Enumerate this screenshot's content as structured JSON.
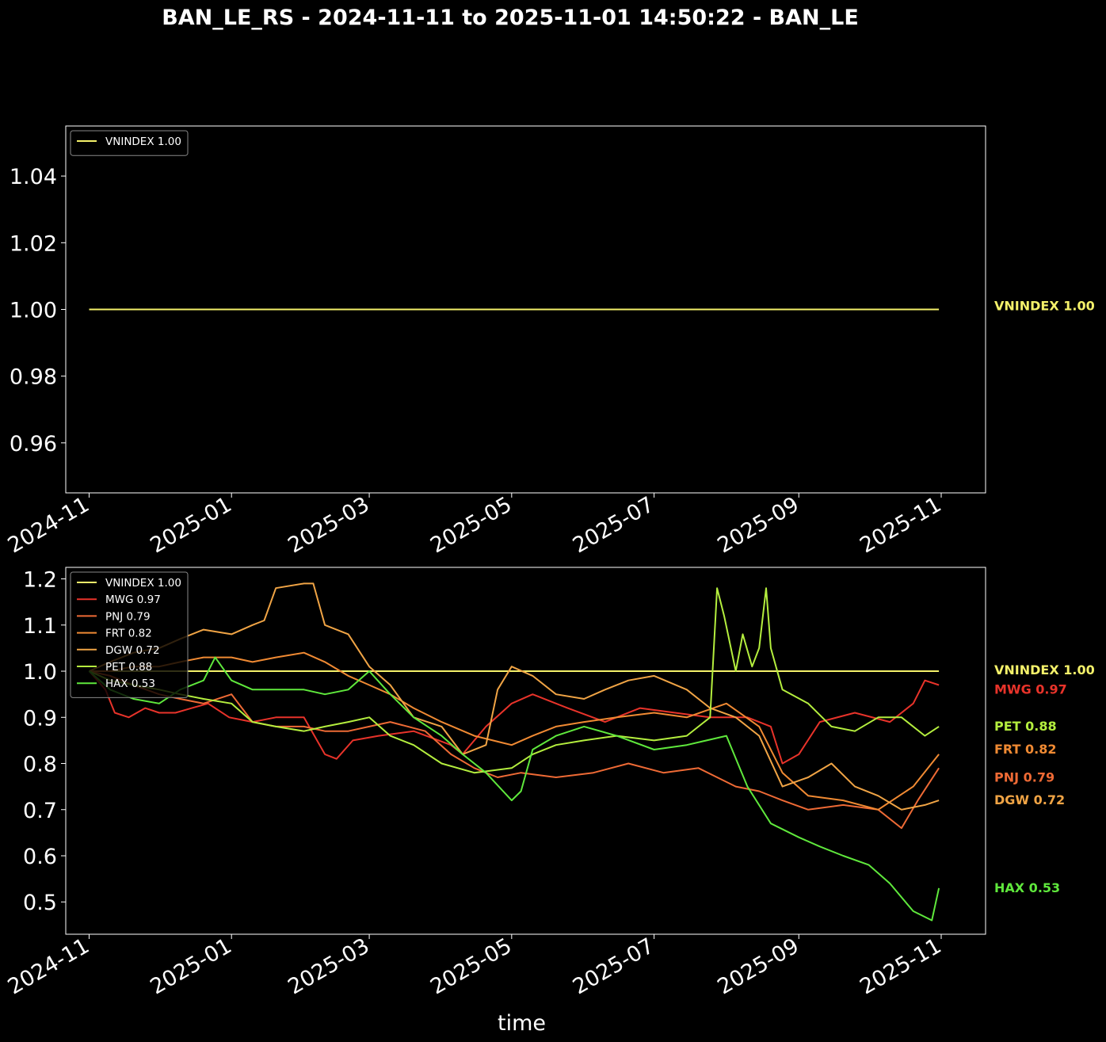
{
  "title": "BAN_LE_RS - 2024-11-11 to 2025-11-01 14:50:22 - BAN_LE",
  "colors": {
    "background": "#000000",
    "text": "#ffffff",
    "VNINDEX": "#f4f16a",
    "MWG": "#e8332a",
    "PNJ": "#ee6a35",
    "FRT": "#f08a33",
    "DGW": "#f0a445",
    "PET": "#b4ee3e",
    "HAX": "#5fe83c"
  },
  "chart_data": [
    {
      "type": "line",
      "title": "",
      "xlabel": "",
      "ylabel": "",
      "x_range": [
        "2024-11-11",
        "2025-11-01"
      ],
      "xlim": [
        "2024-10-22",
        "2025-11-20"
      ],
      "ylim": [
        0.945,
        1.055
      ],
      "yticks": [
        0.96,
        0.98,
        1.0,
        1.02,
        1.04
      ],
      "ytick_labels": [
        "0.96",
        "0.98",
        "1.00",
        "1.02",
        "1.04"
      ],
      "xticks": [
        "2024-11-01",
        "2025-01-01",
        "2025-03-01",
        "2025-05-01",
        "2025-07-01",
        "2025-09-01",
        "2025-11-01"
      ],
      "xtick_labels": [
        "2024-11",
        "2025-01",
        "2025-03",
        "2025-05",
        "2025-07",
        "2025-09",
        "2025-11"
      ],
      "grid": false,
      "legend_position": "top-left",
      "legend": [
        "VNINDEX 1.00"
      ],
      "series": [
        {
          "name": "VNINDEX 1.00",
          "key": "VNINDEX",
          "end_label": "VNINDEX 1.00",
          "x": [
            "2024-11-01",
            "2025-10-31"
          ],
          "values": [
            1.0,
            1.0
          ]
        }
      ]
    },
    {
      "type": "line",
      "title": "",
      "xlabel": "time",
      "ylabel": "",
      "x_range": [
        "2024-11-11",
        "2025-11-01"
      ],
      "xlim": [
        "2024-10-22",
        "2025-11-20"
      ],
      "ylim": [
        0.43,
        1.225
      ],
      "yticks": [
        0.5,
        0.6,
        0.7,
        0.8,
        0.9,
        1.0,
        1.1,
        1.2
      ],
      "ytick_labels": [
        "0.5",
        "0.6",
        "0.7",
        "0.8",
        "0.9",
        "1.0",
        "1.1",
        "1.2"
      ],
      "xticks": [
        "2024-11-01",
        "2025-01-01",
        "2025-03-01",
        "2025-05-01",
        "2025-07-01",
        "2025-09-01",
        "2025-11-01"
      ],
      "xtick_labels": [
        "2024-11",
        "2025-01",
        "2025-03",
        "2025-05",
        "2025-07",
        "2025-09",
        "2025-11"
      ],
      "grid": false,
      "legend_position": "top-left",
      "legend": [
        "VNINDEX 1.00",
        "MWG 0.97",
        "PNJ 0.79",
        "FRT 0.82",
        "DGW 0.72",
        "PET 0.88",
        "HAX 0.53"
      ],
      "series": [
        {
          "name": "VNINDEX 1.00",
          "key": "VNINDEX",
          "end_label": "VNINDEX 1.00",
          "x": [
            "2024-11-01",
            "2025-10-31"
          ],
          "values": [
            1.0,
            1.0
          ]
        },
        {
          "name": "MWG 0.97",
          "key": "MWG",
          "end_label": "MWG 0.97",
          "x": [
            "2024-11-01",
            "2024-11-08",
            "2024-11-12",
            "2024-11-18",
            "2024-11-25",
            "2024-12-01",
            "2024-12-08",
            "2024-12-15",
            "2024-12-22",
            "2024-12-31",
            "2025-01-10",
            "2025-01-20",
            "2025-02-01",
            "2025-02-10",
            "2025-02-15",
            "2025-02-22",
            "2025-03-05",
            "2025-03-20",
            "2025-04-05",
            "2025-04-10",
            "2025-04-20",
            "2025-05-01",
            "2025-05-10",
            "2025-05-25",
            "2025-06-10",
            "2025-06-25",
            "2025-07-10",
            "2025-07-25",
            "2025-08-10",
            "2025-08-20",
            "2025-08-25",
            "2025-09-01",
            "2025-09-10",
            "2025-09-25",
            "2025-10-10",
            "2025-10-20",
            "2025-10-25",
            "2025-10-31"
          ],
          "values": [
            1.0,
            0.96,
            0.91,
            0.9,
            0.92,
            0.91,
            0.91,
            0.92,
            0.93,
            0.9,
            0.89,
            0.9,
            0.9,
            0.82,
            0.81,
            0.85,
            0.86,
            0.87,
            0.84,
            0.82,
            0.88,
            0.93,
            0.95,
            0.92,
            0.89,
            0.92,
            0.91,
            0.9,
            0.9,
            0.88,
            0.8,
            0.82,
            0.89,
            0.91,
            0.89,
            0.93,
            0.98,
            0.97
          ]
        },
        {
          "name": "PNJ 0.79",
          "key": "PNJ",
          "end_label": "PNJ 0.79",
          "x": [
            "2024-11-01",
            "2024-11-10",
            "2024-11-20",
            "2024-12-01",
            "2024-12-10",
            "2024-12-20",
            "2025-01-01",
            "2025-01-10",
            "2025-01-20",
            "2025-02-01",
            "2025-02-10",
            "2025-02-20",
            "2025-03-01",
            "2025-03-10",
            "2025-03-25",
            "2025-04-05",
            "2025-04-15",
            "2025-04-25",
            "2025-05-05",
            "2025-05-20",
            "2025-06-05",
            "2025-06-20",
            "2025-07-05",
            "2025-07-20",
            "2025-08-05",
            "2025-08-15",
            "2025-08-25",
            "2025-09-05",
            "2025-09-20",
            "2025-10-05",
            "2025-10-15",
            "2025-10-22",
            "2025-10-31"
          ],
          "values": [
            1.0,
            0.99,
            0.97,
            0.95,
            0.94,
            0.93,
            0.95,
            0.89,
            0.88,
            0.88,
            0.87,
            0.87,
            0.88,
            0.89,
            0.87,
            0.82,
            0.79,
            0.77,
            0.78,
            0.77,
            0.78,
            0.8,
            0.78,
            0.79,
            0.75,
            0.74,
            0.72,
            0.7,
            0.71,
            0.7,
            0.66,
            0.72,
            0.79
          ]
        },
        {
          "name": "FRT 0.82",
          "key": "FRT",
          "end_label": "FRT 0.82",
          "x": [
            "2024-11-01",
            "2024-11-10",
            "2024-11-20",
            "2024-12-01",
            "2024-12-10",
            "2024-12-20",
            "2025-01-01",
            "2025-01-10",
            "2025-01-20",
            "2025-02-01",
            "2025-02-10",
            "2025-02-20",
            "2025-03-01",
            "2025-03-10",
            "2025-03-20",
            "2025-04-01",
            "2025-04-15",
            "2025-05-01",
            "2025-05-10",
            "2025-05-20",
            "2025-06-01",
            "2025-06-15",
            "2025-07-01",
            "2025-07-15",
            "2025-08-01",
            "2025-08-15",
            "2025-08-25",
            "2025-09-05",
            "2025-09-20",
            "2025-10-05",
            "2025-10-20",
            "2025-10-31"
          ],
          "values": [
            1.0,
            1.0,
            1.01,
            1.01,
            1.02,
            1.03,
            1.03,
            1.02,
            1.03,
            1.04,
            1.02,
            0.99,
            0.97,
            0.95,
            0.92,
            0.89,
            0.86,
            0.84,
            0.86,
            0.88,
            0.89,
            0.9,
            0.91,
            0.9,
            0.93,
            0.88,
            0.78,
            0.73,
            0.72,
            0.7,
            0.75,
            0.82
          ]
        },
        {
          "name": "DGW 0.72",
          "key": "DGW",
          "end_label": "DGW 0.72",
          "x": [
            "2024-11-01",
            "2024-11-10",
            "2024-11-20",
            "2024-12-01",
            "2024-12-10",
            "2024-12-20",
            "2025-01-01",
            "2025-01-10",
            "2025-01-15",
            "2025-01-20",
            "2025-02-01",
            "2025-02-05",
            "2025-02-10",
            "2025-02-20",
            "2025-03-01",
            "2025-03-10",
            "2025-03-20",
            "2025-04-01",
            "2025-04-10",
            "2025-04-20",
            "2025-04-25",
            "2025-05-01",
            "2025-05-10",
            "2025-05-20",
            "2025-06-01",
            "2025-06-10",
            "2025-06-20",
            "2025-07-01",
            "2025-07-15",
            "2025-07-25",
            "2025-08-05",
            "2025-08-15",
            "2025-08-25",
            "2025-09-05",
            "2025-09-15",
            "2025-09-25",
            "2025-10-05",
            "2025-10-15",
            "2025-10-25",
            "2025-10-31"
          ],
          "values": [
            1.0,
            1.02,
            1.04,
            1.05,
            1.07,
            1.09,
            1.08,
            1.1,
            1.11,
            1.18,
            1.19,
            1.19,
            1.1,
            1.08,
            1.01,
            0.97,
            0.9,
            0.88,
            0.82,
            0.84,
            0.96,
            1.01,
            0.99,
            0.95,
            0.94,
            0.96,
            0.98,
            0.99,
            0.96,
            0.92,
            0.9,
            0.86,
            0.75,
            0.77,
            0.8,
            0.75,
            0.73,
            0.7,
            0.71,
            0.72
          ]
        },
        {
          "name": "PET 0.88",
          "key": "PET",
          "end_label": "PET 0.88",
          "x": [
            "2024-11-01",
            "2024-11-10",
            "2024-11-20",
            "2024-12-01",
            "2024-12-10",
            "2024-12-20",
            "2025-01-01",
            "2025-01-10",
            "2025-01-20",
            "2025-02-01",
            "2025-02-10",
            "2025-02-20",
            "2025-03-01",
            "2025-03-10",
            "2025-03-20",
            "2025-04-01",
            "2025-04-15",
            "2025-05-01",
            "2025-05-10",
            "2025-05-20",
            "2025-06-01",
            "2025-06-15",
            "2025-07-01",
            "2025-07-15",
            "2025-07-25",
            "2025-07-28",
            "2025-07-31",
            "2025-08-05",
            "2025-08-08",
            "2025-08-12",
            "2025-08-15",
            "2025-08-18",
            "2025-08-20",
            "2025-08-25",
            "2025-09-05",
            "2025-09-15",
            "2025-09-25",
            "2025-10-05",
            "2025-10-15",
            "2025-10-25",
            "2025-10-31"
          ],
          "values": [
            1.0,
            0.98,
            0.97,
            0.96,
            0.95,
            0.94,
            0.93,
            0.89,
            0.88,
            0.87,
            0.88,
            0.89,
            0.9,
            0.86,
            0.84,
            0.8,
            0.78,
            0.79,
            0.82,
            0.84,
            0.85,
            0.86,
            0.85,
            0.86,
            0.9,
            1.18,
            1.12,
            1.0,
            1.08,
            1.01,
            1.05,
            1.18,
            1.05,
            0.96,
            0.93,
            0.88,
            0.87,
            0.9,
            0.9,
            0.86,
            0.88
          ]
        },
        {
          "name": "HAX 0.53",
          "key": "HAX",
          "end_label": "HAX 0.53",
          "x": [
            "2024-11-01",
            "2024-11-10",
            "2024-11-20",
            "2024-12-01",
            "2024-12-10",
            "2024-12-20",
            "2024-12-25",
            "2025-01-01",
            "2025-01-10",
            "2025-01-20",
            "2025-02-01",
            "2025-02-10",
            "2025-02-20",
            "2025-03-01",
            "2025-03-10",
            "2025-03-20",
            "2025-04-01",
            "2025-04-10",
            "2025-04-20",
            "2025-05-01",
            "2025-05-05",
            "2025-05-10",
            "2025-05-20",
            "2025-06-01",
            "2025-06-15",
            "2025-07-01",
            "2025-07-15",
            "2025-08-01",
            "2025-08-10",
            "2025-08-20",
            "2025-09-01",
            "2025-09-10",
            "2025-09-20",
            "2025-10-01",
            "2025-10-10",
            "2025-10-20",
            "2025-10-28",
            "2025-10-31"
          ],
          "values": [
            1.0,
            0.96,
            0.94,
            0.93,
            0.96,
            0.98,
            1.03,
            0.98,
            0.96,
            0.96,
            0.96,
            0.95,
            0.96,
            1.0,
            0.95,
            0.9,
            0.86,
            0.82,
            0.78,
            0.72,
            0.74,
            0.83,
            0.86,
            0.88,
            0.86,
            0.83,
            0.84,
            0.86,
            0.75,
            0.67,
            0.64,
            0.62,
            0.6,
            0.58,
            0.54,
            0.48,
            0.46,
            0.53
          ]
        }
      ]
    }
  ]
}
